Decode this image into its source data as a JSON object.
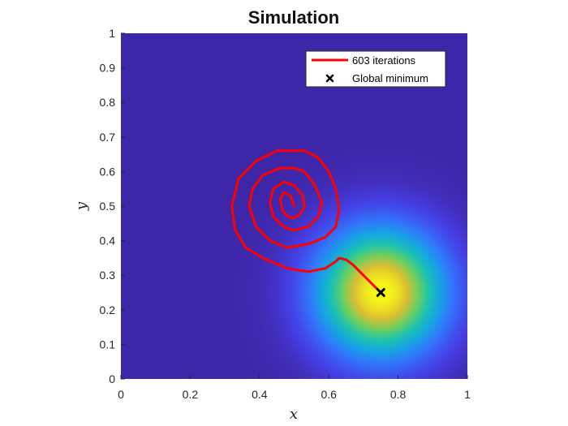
{
  "chart_data": {
    "type": "heatmap",
    "title": "Simulation",
    "xlabel": "x",
    "ylabel": "y",
    "xlim": [
      0,
      1
    ],
    "ylim": [
      0,
      1
    ],
    "x_ticks": [
      "0",
      "0.2",
      "0.4",
      "0.6",
      "0.8",
      "1"
    ],
    "y_ticks": [
      "0",
      "0.1",
      "0.2",
      "0.3",
      "0.4",
      "0.5",
      "0.6",
      "0.7",
      "0.8",
      "0.9",
      "1"
    ],
    "grid": false,
    "legend_position": "top-right",
    "colormap": "parula",
    "background_field": {
      "peak_x": 0.75,
      "peak_y": 0.25
    },
    "series": [
      {
        "name": "603 iterations",
        "type": "line",
        "color": "#ff0000",
        "x": [
          0.5,
          0.49,
          0.47,
          0.46,
          0.465,
          0.48,
          0.5,
          0.52,
          0.53,
          0.525,
          0.5,
          0.47,
          0.44,
          0.43,
          0.44,
          0.47,
          0.5,
          0.54,
          0.57,
          0.58,
          0.56,
          0.53,
          0.5,
          0.46,
          0.41,
          0.38,
          0.37,
          0.39,
          0.43,
          0.48,
          0.54,
          0.59,
          0.62,
          0.63,
          0.62,
          0.6,
          0.57,
          0.53,
          0.5,
          0.45,
          0.39,
          0.34,
          0.32,
          0.33,
          0.36,
          0.41,
          0.48,
          0.54,
          0.59,
          0.62,
          0.63,
          0.65,
          0.67,
          0.69,
          0.71,
          0.73,
          0.745,
          0.75
        ],
        "y": [
          0.5,
          0.53,
          0.54,
          0.52,
          0.49,
          0.47,
          0.465,
          0.48,
          0.5,
          0.53,
          0.56,
          0.57,
          0.55,
          0.51,
          0.47,
          0.44,
          0.43,
          0.44,
          0.47,
          0.51,
          0.56,
          0.6,
          0.61,
          0.61,
          0.59,
          0.55,
          0.5,
          0.44,
          0.4,
          0.38,
          0.39,
          0.41,
          0.44,
          0.49,
          0.55,
          0.6,
          0.64,
          0.66,
          0.66,
          0.66,
          0.63,
          0.58,
          0.5,
          0.43,
          0.38,
          0.35,
          0.32,
          0.31,
          0.32,
          0.34,
          0.35,
          0.345,
          0.33,
          0.31,
          0.29,
          0.27,
          0.255,
          0.25
        ]
      },
      {
        "name": "Global minimum",
        "type": "scatter",
        "marker": "x",
        "color": "#000000",
        "x": [
          0.75
        ],
        "y": [
          0.25
        ]
      }
    ]
  }
}
